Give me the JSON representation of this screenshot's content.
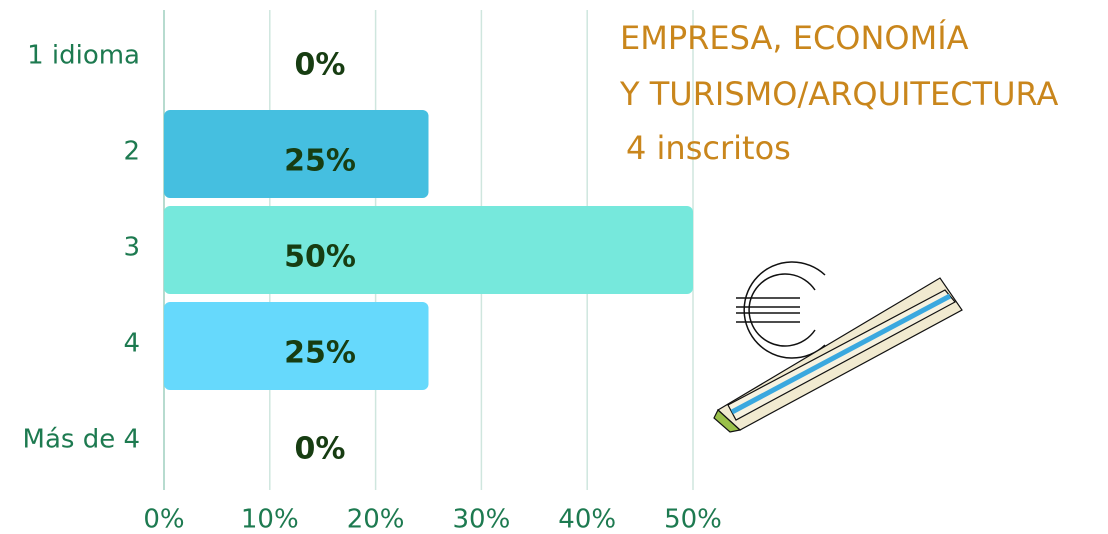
{
  "chart_data": {
    "type": "hbar",
    "title": [
      "EMPRESA, ECONOMÍA",
      "Y TURISMO/ARQUITECTURA"
    ],
    "subtitle": "4 inscritos",
    "categories": [
      "1 idioma",
      "2",
      "3",
      "4",
      "Más de 4"
    ],
    "values": [
      0,
      25,
      50,
      25,
      0
    ],
    "value_labels": [
      "0%",
      "25%",
      "50%",
      "25%",
      "0%"
    ],
    "colors": [
      "#45bfe0",
      "#45bfe0",
      "#76e8dc",
      "#66d9fc",
      "#66d9fc"
    ],
    "xlim": [
      0,
      50
    ],
    "xticks": [
      {
        "value": 0,
        "label": "0%"
      },
      {
        "value": 10,
        "label": "10%"
      },
      {
        "value": 20,
        "label": "20%"
      },
      {
        "value": 30,
        "label": "30%"
      },
      {
        "value": 40,
        "label": "40%"
      },
      {
        "value": 50,
        "label": "50%"
      }
    ],
    "grid": true
  }
}
